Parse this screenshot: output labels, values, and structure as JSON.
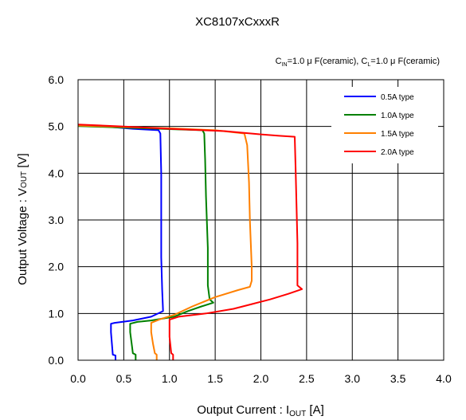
{
  "chart_data": {
    "type": "line",
    "title": "XC8107xCxxxR",
    "conditions": {
      "cin_symbol": "C",
      "cin_sub": "IN",
      "cin_value": "=1.0 μ F(ceramic), ",
      "cl_symbol": "C",
      "cl_sub": "L",
      "cl_value": "=1.0 μ F(ceramic)"
    },
    "xlabel": {
      "main": "Output Current : I",
      "sub": "OUT",
      "unit": " [A]"
    },
    "ylabel": {
      "main": "Output Voltage : V",
      "sub": "OUT",
      "unit": " [V]"
    },
    "xlim": [
      0,
      4
    ],
    "ylim": [
      0,
      6
    ],
    "xticks": [
      0,
      0.5,
      1,
      1.5,
      2,
      2.5,
      3,
      3.5,
      4
    ],
    "xtick_labels": [
      "0.0",
      "0.5",
      "1.0",
      "1.5",
      "2.0",
      "2.5",
      "3.0",
      "3.5",
      "4.0"
    ],
    "yticks": [
      0,
      1,
      2,
      3,
      4,
      5,
      6
    ],
    "ytick_labels": [
      "0.0",
      "1.0",
      "2.0",
      "3.0",
      "4.0",
      "5.0",
      "6.0"
    ],
    "grid": true,
    "legend_position": "top-right",
    "series": [
      {
        "name": "0.5A type",
        "color": "#0000ff",
        "points": [
          [
            0,
            5.02
          ],
          [
            0.3,
            5.0
          ],
          [
            0.6,
            4.95
          ],
          [
            0.88,
            4.92
          ],
          [
            0.9,
            4.85
          ],
          [
            0.91,
            4.0
          ],
          [
            0.91,
            2.2
          ],
          [
            0.92,
            1.5
          ],
          [
            0.93,
            1.05
          ],
          [
            0.8,
            0.93
          ],
          [
            0.6,
            0.85
          ],
          [
            0.4,
            0.8
          ],
          [
            0.36,
            0.78
          ],
          [
            0.36,
            0.6
          ],
          [
            0.37,
            0.35
          ],
          [
            0.38,
            0.12
          ],
          [
            0.41,
            0.1
          ],
          [
            0.41,
            0.0
          ]
        ]
      },
      {
        "name": "1.0A type",
        "color": "#008000",
        "points": [
          [
            0,
            5.01
          ],
          [
            0.4,
            4.98
          ],
          [
            0.9,
            4.95
          ],
          [
            1.36,
            4.92
          ],
          [
            1.38,
            4.85
          ],
          [
            1.39,
            4.3
          ],
          [
            1.4,
            3.5
          ],
          [
            1.42,
            2.4
          ],
          [
            1.42,
            1.6
          ],
          [
            1.44,
            1.3
          ],
          [
            1.48,
            1.23
          ],
          [
            1.35,
            1.15
          ],
          [
            1.2,
            1.05
          ],
          [
            1.05,
            0.93
          ],
          [
            0.8,
            0.85
          ],
          [
            0.65,
            0.82
          ],
          [
            0.57,
            0.78
          ],
          [
            0.57,
            0.6
          ],
          [
            0.59,
            0.3
          ],
          [
            0.6,
            0.15
          ],
          [
            0.63,
            0.12
          ],
          [
            0.63,
            0.0
          ]
        ]
      },
      {
        "name": "1.5A type",
        "color": "#ff8000",
        "points": [
          [
            0,
            5.02
          ],
          [
            0.5,
            4.99
          ],
          [
            1.0,
            4.96
          ],
          [
            1.5,
            4.92
          ],
          [
            1.82,
            4.85
          ],
          [
            1.85,
            4.6
          ],
          [
            1.87,
            3.8
          ],
          [
            1.88,
            3.0
          ],
          [
            1.9,
            2.0
          ],
          [
            1.9,
            1.7
          ],
          [
            1.88,
            1.57
          ],
          [
            1.75,
            1.5
          ],
          [
            1.5,
            1.35
          ],
          [
            1.25,
            1.15
          ],
          [
            1.05,
            0.97
          ],
          [
            0.9,
            0.88
          ],
          [
            0.8,
            0.8
          ],
          [
            0.8,
            0.6
          ],
          [
            0.82,
            0.35
          ],
          [
            0.84,
            0.15
          ],
          [
            0.86,
            0.12
          ],
          [
            0.86,
            0.0
          ]
        ]
      },
      {
        "name": "2.0A type",
        "color": "#ff0000",
        "points": [
          [
            0,
            5.04
          ],
          [
            0.5,
            5.0
          ],
          [
            1.0,
            4.95
          ],
          [
            1.6,
            4.9
          ],
          [
            2.0,
            4.83
          ],
          [
            2.2,
            4.8
          ],
          [
            2.37,
            4.78
          ],
          [
            2.38,
            4.1
          ],
          [
            2.4,
            2.5
          ],
          [
            2.4,
            1.6
          ],
          [
            2.45,
            1.52
          ],
          [
            2.3,
            1.42
          ],
          [
            2.1,
            1.3
          ],
          [
            1.9,
            1.2
          ],
          [
            1.7,
            1.1
          ],
          [
            1.4,
            1.0
          ],
          [
            1.1,
            0.93
          ],
          [
            1.0,
            0.87
          ],
          [
            1.0,
            0.5
          ],
          [
            1.02,
            0.15
          ],
          [
            1.04,
            0.12
          ],
          [
            1.04,
            0.0
          ]
        ]
      }
    ]
  }
}
